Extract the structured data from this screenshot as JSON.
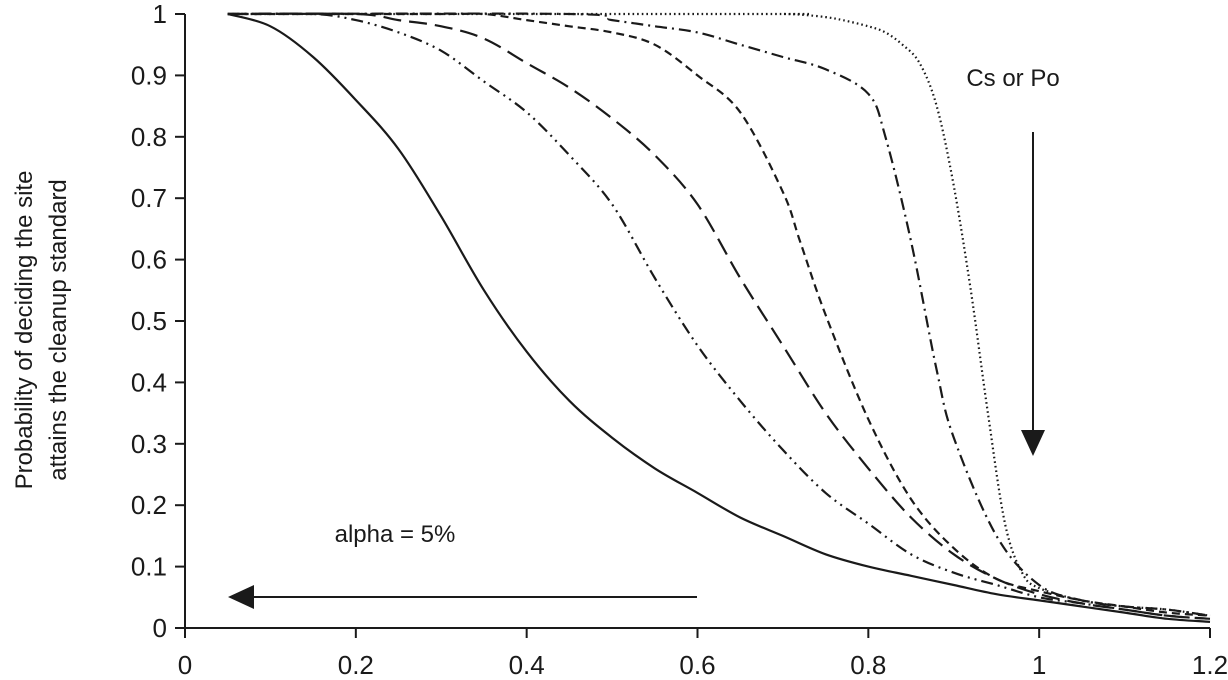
{
  "chart_data": {
    "type": "line",
    "title": "",
    "xlabel": "",
    "ylabel": "Probability of deciding the site\nattains the cleanup standard",
    "ylabel_lines": [
      "Probability of deciding the site",
      "attains the cleanup standard"
    ],
    "xlim": [
      0,
      1.2
    ],
    "ylim": [
      0,
      1
    ],
    "x_ticks": [
      0,
      0.2,
      0.4,
      0.6,
      0.8,
      1,
      1.2
    ],
    "y_ticks": [
      0,
      0.1,
      0.2,
      0.3,
      0.4,
      0.5,
      0.6,
      0.7,
      0.8,
      0.9,
      1
    ],
    "x_tick_labels": [
      "0",
      "0.2",
      "0.4",
      "0.6",
      "0.8",
      "1",
      "1.2"
    ],
    "y_tick_labels": [
      "0",
      "0.1",
      "0.2",
      "0.3",
      "0.4",
      "0.5",
      "0.6",
      "0.7",
      "0.8",
      "0.9",
      "1"
    ],
    "grid": false,
    "legend": "none",
    "series": [
      {
        "style": "solid",
        "x": [
          0.05,
          0.1,
          0.15,
          0.2,
          0.25,
          0.3,
          0.35,
          0.4,
          0.45,
          0.5,
          0.55,
          0.6,
          0.65,
          0.7,
          0.75,
          0.8,
          0.85,
          0.9,
          0.95,
          1.0,
          1.05,
          1.1,
          1.15,
          1.2
        ],
        "y": [
          1.0,
          0.98,
          0.93,
          0.86,
          0.78,
          0.67,
          0.55,
          0.45,
          0.37,
          0.31,
          0.26,
          0.22,
          0.18,
          0.15,
          0.12,
          0.1,
          0.085,
          0.07,
          0.055,
          0.045,
          0.035,
          0.025,
          0.015,
          0.01
        ]
      },
      {
        "style": "dash-dot-dot",
        "x": [
          0.05,
          0.15,
          0.2,
          0.25,
          0.3,
          0.35,
          0.4,
          0.45,
          0.5,
          0.55,
          0.6,
          0.65,
          0.7,
          0.75,
          0.8,
          0.85,
          0.9,
          0.95,
          1.0,
          1.05,
          1.1,
          1.15,
          1.2
        ],
        "y": [
          1.0,
          1.0,
          0.99,
          0.97,
          0.94,
          0.89,
          0.84,
          0.77,
          0.69,
          0.57,
          0.46,
          0.37,
          0.29,
          0.22,
          0.17,
          0.12,
          0.09,
          0.07,
          0.05,
          0.04,
          0.03,
          0.02,
          0.015
        ]
      },
      {
        "style": "long-dash",
        "x": [
          0.05,
          0.2,
          0.25,
          0.3,
          0.35,
          0.4,
          0.45,
          0.5,
          0.55,
          0.6,
          0.65,
          0.7,
          0.75,
          0.8,
          0.85,
          0.9,
          0.95,
          1.0,
          1.05,
          1.1,
          1.15,
          1.2
        ],
        "y": [
          1.0,
          1.0,
          0.99,
          0.98,
          0.96,
          0.92,
          0.88,
          0.83,
          0.77,
          0.69,
          0.57,
          0.46,
          0.35,
          0.26,
          0.18,
          0.12,
          0.08,
          0.055,
          0.04,
          0.03,
          0.02,
          0.015
        ]
      },
      {
        "style": "short-dash",
        "x": [
          0.05,
          0.3,
          0.35,
          0.4,
          0.45,
          0.5,
          0.55,
          0.6,
          0.65,
          0.7,
          0.72,
          0.75,
          0.8,
          0.85,
          0.9,
          0.95,
          1.0,
          1.05,
          1.1,
          1.15,
          1.2
        ],
        "y": [
          1.0,
          1.0,
          1.0,
          0.99,
          0.98,
          0.97,
          0.95,
          0.9,
          0.84,
          0.71,
          0.63,
          0.51,
          0.34,
          0.21,
          0.13,
          0.08,
          0.06,
          0.045,
          0.035,
          0.025,
          0.02
        ]
      },
      {
        "style": "dash-dot",
        "x": [
          0.05,
          0.45,
          0.5,
          0.55,
          0.6,
          0.65,
          0.7,
          0.75,
          0.8,
          0.82,
          0.85,
          0.88,
          0.9,
          0.95,
          1.0,
          1.05,
          1.1,
          1.15,
          1.2
        ],
        "y": [
          1.0,
          1.0,
          0.99,
          0.98,
          0.97,
          0.95,
          0.93,
          0.91,
          0.87,
          0.8,
          0.63,
          0.42,
          0.31,
          0.15,
          0.07,
          0.045,
          0.035,
          0.03,
          0.02
        ]
      },
      {
        "style": "dotted",
        "x": [
          0.05,
          0.68,
          0.7,
          0.72,
          0.75,
          0.77,
          0.8,
          0.82,
          0.84,
          0.86,
          0.88,
          0.9,
          0.92,
          0.94,
          0.96,
          0.98,
          1.0,
          1.05,
          1.1,
          1.15,
          1.2
        ],
        "y": [
          1.0,
          1.0,
          1.0,
          0.999,
          0.995,
          0.99,
          0.98,
          0.97,
          0.95,
          0.92,
          0.85,
          0.72,
          0.55,
          0.35,
          0.17,
          0.09,
          0.065,
          0.045,
          0.035,
          0.03,
          0.02
        ]
      }
    ],
    "annotations": [
      {
        "text": "Cs or Po",
        "arrow": "down"
      },
      {
        "text": "alpha = 5%",
        "arrow": "left"
      }
    ]
  }
}
